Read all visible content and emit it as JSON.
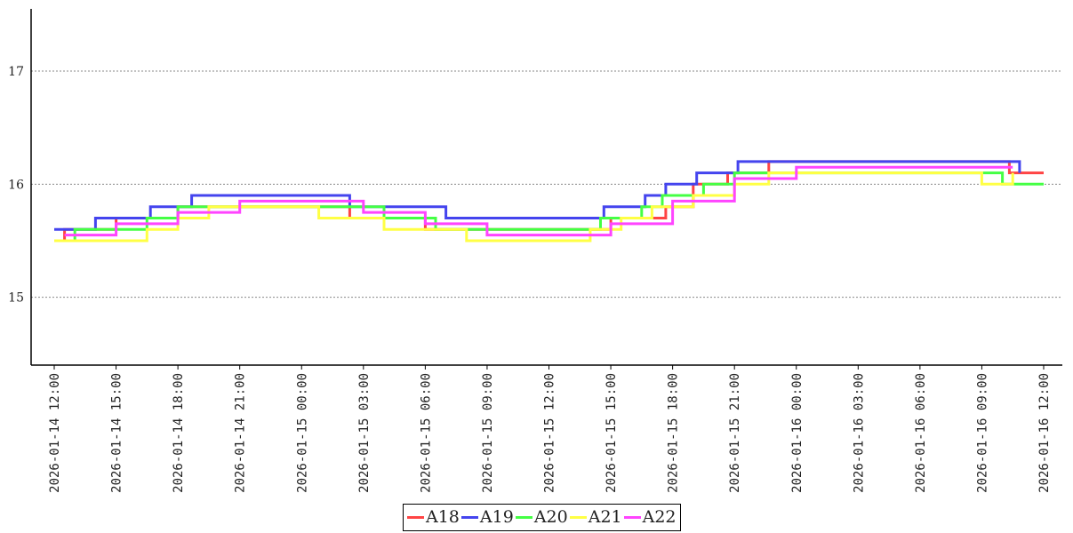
{
  "chart_data": {
    "type": "line",
    "title": "",
    "xlabel": "",
    "ylabel": "",
    "ylim": [
      14.4,
      17.55
    ],
    "yticks": [
      15,
      16,
      17
    ],
    "xlim": [
      "2026-01-14 12:00",
      "2026-01-16 12:00"
    ],
    "xticks": [
      "2026-01-14 12:00",
      "2026-01-14 15:00",
      "2026-01-14 18:00",
      "2026-01-14 21:00",
      "2026-01-15 00:00",
      "2026-01-15 03:00",
      "2026-01-15 06:00",
      "2026-01-15 09:00",
      "2026-01-15 12:00",
      "2026-01-15 15:00",
      "2026-01-15 18:00",
      "2026-01-15 21:00",
      "2026-01-16 00:00",
      "2026-01-16 03:00",
      "2026-01-16 06:00",
      "2026-01-16 09:00",
      "2026-01-16 12:00"
    ],
    "grid": "horizontal dotted",
    "legend_position": "bottom-center",
    "series": [
      {
        "name": "A18",
        "color": "#ff4444",
        "x": [
          "2026-01-14 12:00",
          "2026-01-14 12:30",
          "2026-01-14 13:30",
          "2026-01-14 15:00",
          "2026-01-14 18:00",
          "2026-01-14 21:00",
          "2026-01-15 00:00",
          "2026-01-15 02:20",
          "2026-01-15 06:00",
          "2026-01-15 08:30",
          "2026-01-15 12:00",
          "2026-01-15 15:00",
          "2026-01-15 17:40",
          "2026-01-15 19:00",
          "2026-01-15 20:40",
          "2026-01-15 22:40",
          "2026-01-16 00:00",
          "2026-01-16 03:00",
          "2026-01-16 06:00",
          "2026-01-16 09:00",
          "2026-01-16 10:20",
          "2026-01-16 12:00"
        ],
        "y": [
          15.5,
          15.6,
          15.6,
          15.7,
          15.8,
          15.8,
          15.8,
          15.7,
          15.6,
          15.6,
          15.6,
          15.7,
          15.8,
          16.0,
          16.1,
          16.2,
          16.2,
          16.2,
          16.2,
          16.2,
          16.1,
          16.1
        ]
      },
      {
        "name": "A19",
        "color": "#4444ee",
        "x": [
          "2026-01-14 12:00",
          "2026-01-14 13:10",
          "2026-01-14 14:00",
          "2026-01-14 16:40",
          "2026-01-14 18:40",
          "2026-01-14 21:00",
          "2026-01-15 00:00",
          "2026-01-15 02:20",
          "2026-01-15 05:00",
          "2026-01-15 07:00",
          "2026-01-15 12:00",
          "2026-01-15 14:40",
          "2026-01-15 16:40",
          "2026-01-15 17:40",
          "2026-01-15 19:10",
          "2026-01-15 21:10",
          "2026-01-16 00:00",
          "2026-01-16 03:00",
          "2026-01-16 06:00",
          "2026-01-16 09:00",
          "2026-01-16 10:00",
          "2026-01-16 10:50"
        ],
        "y": [
          15.6,
          15.6,
          15.7,
          15.8,
          15.9,
          15.9,
          15.9,
          15.8,
          15.8,
          15.7,
          15.7,
          15.8,
          15.9,
          16.0,
          16.1,
          16.2,
          16.2,
          16.2,
          16.2,
          16.2,
          16.2,
          16.1
        ]
      },
      {
        "name": "A20",
        "color": "#44ff44",
        "x": [
          "2026-01-14 12:00",
          "2026-01-14 13:00",
          "2026-01-14 14:30",
          "2026-01-14 16:30",
          "2026-01-14 18:00",
          "2026-01-14 21:00",
          "2026-01-15 00:00",
          "2026-01-15 01:00",
          "2026-01-15 04:00",
          "2026-01-15 06:30",
          "2026-01-15 12:00",
          "2026-01-15 14:30",
          "2026-01-15 16:30",
          "2026-01-15 17:30",
          "2026-01-15 19:30",
          "2026-01-15 21:00",
          "2026-01-16 00:00",
          "2026-01-16 03:00",
          "2026-01-16 06:00",
          "2026-01-16 09:00",
          "2026-01-16 10:00",
          "2026-01-16 12:00"
        ],
        "y": [
          15.5,
          15.6,
          15.6,
          15.7,
          15.8,
          15.8,
          15.8,
          15.8,
          15.7,
          15.6,
          15.6,
          15.7,
          15.8,
          15.9,
          16.0,
          16.1,
          16.1,
          16.1,
          16.1,
          16.1,
          16.0,
          16.0
        ]
      },
      {
        "name": "A21",
        "color": "#ffff44",
        "x": [
          "2026-01-14 12:00",
          "2026-01-14 14:00",
          "2026-01-14 16:30",
          "2026-01-14 18:00",
          "2026-01-14 19:30",
          "2026-01-14 21:00",
          "2026-01-15 00:00",
          "2026-01-15 00:50",
          "2026-01-15 03:00",
          "2026-01-15 04:00",
          "2026-01-15 08:00",
          "2026-01-15 12:00",
          "2026-01-15 14:00",
          "2026-01-15 15:30",
          "2026-01-15 17:00",
          "2026-01-15 19:00",
          "2026-01-15 21:00",
          "2026-01-15 22:40",
          "2026-01-16 00:00",
          "2026-01-16 03:00",
          "2026-01-16 06:00",
          "2026-01-16 09:00",
          "2026-01-16 09:40",
          "2026-01-16 10:30"
        ],
        "y": [
          15.5,
          15.5,
          15.6,
          15.7,
          15.8,
          15.8,
          15.8,
          15.7,
          15.7,
          15.6,
          15.5,
          15.5,
          15.6,
          15.7,
          15.8,
          15.9,
          16.0,
          16.1,
          16.1,
          16.1,
          16.1,
          16.0,
          16.0,
          16.1
        ]
      },
      {
        "name": "A22",
        "color": "#ff44ff",
        "x": [
          "2026-01-14 12:30",
          "2026-01-14 15:00",
          "2026-01-14 18:00",
          "2026-01-14 21:00",
          "2026-01-15 00:00",
          "2026-01-15 03:00",
          "2026-01-15 06:00",
          "2026-01-15 09:00",
          "2026-01-15 12:00",
          "2026-01-15 15:00",
          "2026-01-15 18:00",
          "2026-01-15 21:00",
          "2026-01-16 00:00",
          "2026-01-16 03:00",
          "2026-01-16 06:00",
          "2026-01-16 09:00",
          "2026-01-16 10:30"
        ],
        "y": [
          15.55,
          15.65,
          15.75,
          15.85,
          15.85,
          15.75,
          15.65,
          15.55,
          15.55,
          15.65,
          15.85,
          16.05,
          16.15,
          16.15,
          16.15,
          16.15,
          16.15
        ]
      }
    ]
  }
}
